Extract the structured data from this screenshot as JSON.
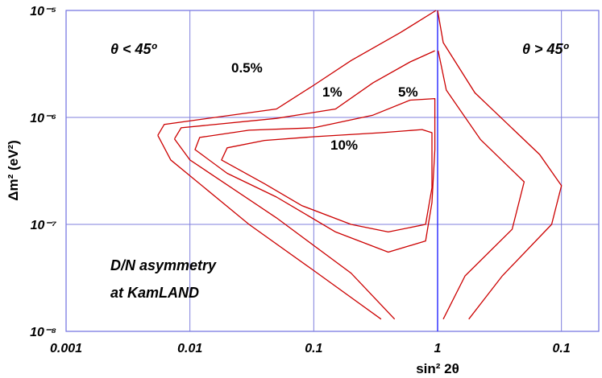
{
  "chart_data": {
    "type": "line",
    "title": "",
    "xlabel": "sin² 2θ",
    "ylabel": "Δm² (eV²)",
    "x_tick_labels": [
      "0.001",
      "0.01",
      "0.1",
      "1",
      "0.1"
    ],
    "y_tick_labels": [
      "10⁻⁵",
      "10⁻⁶",
      "10⁻⁷",
      "10⁻⁸"
    ],
    "ylim": [
      1e-08,
      1e-05
    ],
    "y_scale": "log",
    "x_scale": "log (left half: sin²2θ from 0.001 to 1 for θ<45°; right half mirrored from 1 to 0.1 for θ>45°)",
    "grid": true,
    "region_labels": {
      "left": "θ < 45º",
      "right": "θ > 45º"
    },
    "annotation": [
      "D/N  asymmetry",
      "at KamLAND"
    ],
    "line_color": "#cc0000",
    "grid_color": "#7f7fdd",
    "series": [
      {
        "name": "0.5%",
        "left_segment": [
          [
            0.0055,
            6.8e-07
          ],
          [
            0.0062,
            8.6e-07
          ],
          [
            0.05,
            1.2e-06
          ],
          [
            0.1,
            2e-06
          ],
          [
            0.2,
            3.4e-06
          ],
          [
            0.5,
            6.2e-06
          ],
          [
            0.97,
            1e-05
          ]
        ],
        "left_tail": [
          [
            0.0055,
            6.8e-07
          ],
          [
            0.007,
            4e-07
          ],
          [
            0.03,
            1e-07
          ],
          [
            0.1,
            3.7e-08
          ],
          [
            0.35,
            1.3e-08
          ]
        ],
        "right_segment": [
          [
            1,
            1e-05
          ],
          [
            0.9,
            5e-06
          ],
          [
            0.5,
            1.7e-06
          ],
          [
            0.15,
            4.5e-07
          ],
          [
            0.1,
            2.3e-07
          ],
          [
            0.12,
            1e-07
          ],
          [
            0.3,
            3.3e-08
          ],
          [
            0.56,
            1.3e-08
          ]
        ]
      },
      {
        "name": "1%",
        "left_segment": [
          [
            0.0075,
            6.3e-07
          ],
          [
            0.0085,
            8e-07
          ],
          [
            0.05,
            9.8e-07
          ],
          [
            0.15,
            1.2e-06
          ],
          [
            0.3,
            2.1e-06
          ],
          [
            0.6,
            3.3e-06
          ],
          [
            0.95,
            4.2e-06
          ]
        ],
        "left_tail": [
          [
            0.0075,
            6.3e-07
          ],
          [
            0.01,
            4e-07
          ],
          [
            0.05,
            1.15e-07
          ],
          [
            0.2,
            3.5e-08
          ],
          [
            0.45,
            1.3e-08
          ]
        ],
        "right_segment": [
          [
            0.99,
            4.2e-06
          ],
          [
            0.85,
            1.8e-06
          ],
          [
            0.45,
            6.2e-07
          ],
          [
            0.2,
            2.5e-07
          ],
          [
            0.25,
            9e-08
          ],
          [
            0.6,
            3.3e-08
          ],
          [
            0.9,
            1.3e-08
          ]
        ]
      },
      {
        "name": "5%",
        "closed": true,
        "points": [
          [
            0.011,
            5e-07
          ],
          [
            0.012,
            6.5e-07
          ],
          [
            0.03,
            7.6e-07
          ],
          [
            0.1,
            8e-07
          ],
          [
            0.3,
            1.05e-06
          ],
          [
            0.6,
            1.45e-06
          ],
          [
            0.95,
            1.5e-06
          ],
          [
            0.95,
            5e-07
          ],
          [
            0.9,
            1.6e-07
          ],
          [
            0.8,
            7e-08
          ],
          [
            0.4,
            5.5e-08
          ],
          [
            0.15,
            8.5e-08
          ],
          [
            0.05,
            1.8e-07
          ],
          [
            0.02,
            3e-07
          ],
          [
            0.011,
            5e-07
          ]
        ]
      },
      {
        "name": "10%",
        "closed": true,
        "points": [
          [
            0.018,
            4e-07
          ],
          [
            0.02,
            5.2e-07
          ],
          [
            0.04,
            6.1e-07
          ],
          [
            0.1,
            6.6e-07
          ],
          [
            0.35,
            7.2e-07
          ],
          [
            0.75,
            7.7e-07
          ],
          [
            0.9,
            7.2e-07
          ],
          [
            0.9,
            2.2e-07
          ],
          [
            0.8,
            1e-07
          ],
          [
            0.4,
            8.5e-08
          ],
          [
            0.2,
            1e-07
          ],
          [
            0.08,
            1.5e-07
          ],
          [
            0.04,
            2.4e-07
          ],
          [
            0.018,
            4e-07
          ]
        ]
      }
    ]
  }
}
